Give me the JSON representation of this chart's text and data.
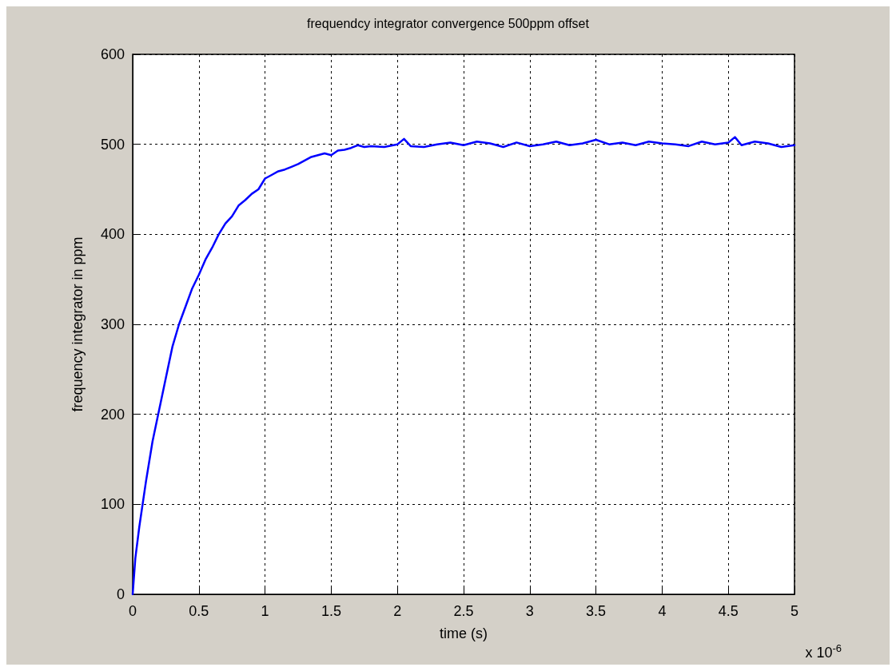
{
  "chart_data": {
    "type": "line",
    "title": "frequendcy integrator convergence 500ppm offset",
    "xlabel": "time (s)",
    "ylabel": "frequency integrator in ppm",
    "annotations": [
      "x 10$^{-6}$"
    ],
    "x": [
      0,
      0.02,
      0.05,
      0.1,
      0.15,
      0.2,
      0.25,
      0.3,
      0.35,
      0.4,
      0.45,
      0.5,
      0.55,
      0.6,
      0.65,
      0.7,
      0.75,
      0.8,
      0.85,
      0.9,
      0.95,
      1.0,
      1.05,
      1.1,
      1.15,
      1.2,
      1.25,
      1.3,
      1.35,
      1.4,
      1.45,
      1.5,
      1.55,
      1.6,
      1.65,
      1.7,
      1.75,
      1.8,
      1.9,
      2.0,
      2.05,
      2.1,
      2.2,
      2.3,
      2.4,
      2.5,
      2.6,
      2.7,
      2.8,
      2.9,
      3.0,
      3.1,
      3.2,
      3.3,
      3.4,
      3.5,
      3.6,
      3.7,
      3.8,
      3.9,
      4.0,
      4.1,
      4.2,
      4.3,
      4.4,
      4.5,
      4.55,
      4.6,
      4.7,
      4.8,
      4.9,
      5.0
    ],
    "series": [
      {
        "color": "#0000ff",
        "values": [
          0,
          40,
          75,
          125,
          170,
          205,
          240,
          275,
          300,
          320,
          340,
          355,
          372,
          385,
          400,
          412,
          420,
          432,
          438,
          445,
          450,
          462,
          466,
          470,
          472,
          475,
          478,
          482,
          486,
          488,
          490,
          488,
          493,
          494,
          496,
          499,
          497,
          498,
          497,
          500,
          506,
          498,
          497,
          500,
          502,
          499,
          503,
          501,
          497,
          502,
          498,
          500,
          503,
          499,
          501,
          505,
          500,
          502,
          499,
          503,
          501,
          500,
          498,
          503,
          500,
          502,
          508,
          499,
          503,
          501,
          497,
          499
        ]
      }
    ],
    "xlim": [
      0,
      5
    ],
    "xticks": [
      0,
      0.5,
      1,
      1.5,
      2,
      2.5,
      3,
      3.5,
      4,
      4.5,
      5
    ],
    "ylim": [
      0,
      600
    ],
    "yticks": [
      0,
      100,
      200,
      300,
      400,
      500,
      600
    ],
    "grid": true,
    "line_style": "solid",
    "marker": "none"
  }
}
